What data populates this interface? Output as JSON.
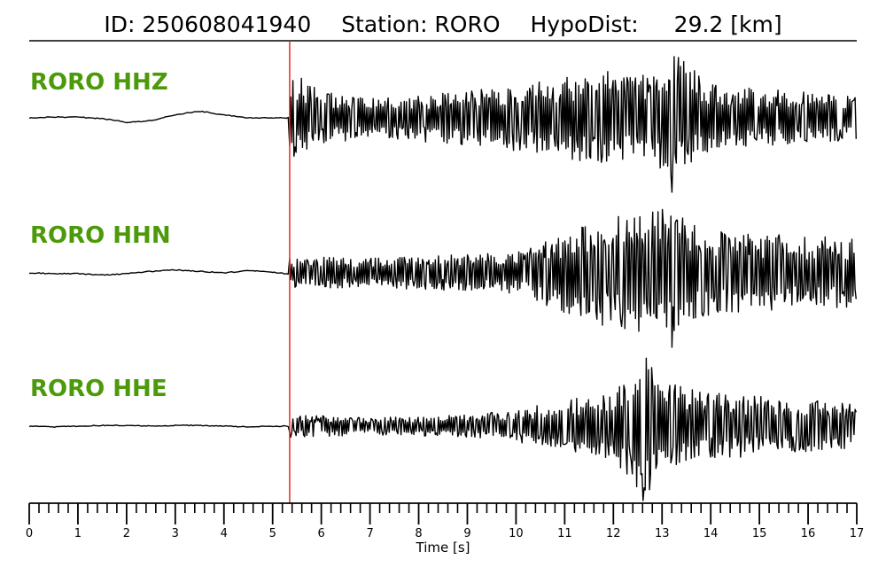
{
  "header": {
    "id_text": "ID: 250608041940",
    "station_text": "Station: RORO",
    "hypodist_text": "HypoDist:",
    "hypodist_value": "29.2 [km]"
  },
  "colors": {
    "trace": "#000000",
    "label": "#4c9a0a",
    "pick_line": "#e8291f",
    "axis": "#000000"
  },
  "chart_data": {
    "type": "line",
    "title": "ID: 250608041940   Station: RORO   HypoDist:    29.2 [km]",
    "xlabel": "Time [s]",
    "ylabel": "",
    "xlim": [
      0,
      17
    ],
    "x_ticks": [
      0,
      1,
      2,
      3,
      4,
      5,
      6,
      7,
      8,
      9,
      10,
      11,
      12,
      13,
      14,
      15,
      16,
      17
    ],
    "minor_tick_step": 0.2,
    "pick_time": 5.35,
    "grid": false,
    "series": [
      {
        "name": "RORO HHZ",
        "pre_event": [
          [
            0,
            0
          ],
          [
            0.5,
            0.01
          ],
          [
            1,
            0.01
          ],
          [
            1.5,
            -0.01
          ],
          [
            2,
            -0.06
          ],
          [
            2.5,
            -0.04
          ],
          [
            3,
            0.04
          ],
          [
            3.5,
            0.09
          ],
          [
            4,
            0.04
          ],
          [
            4.5,
            0.0
          ],
          [
            5,
            0.0
          ],
          [
            5.35,
            0.0
          ]
        ],
        "envelope": [
          [
            5.35,
            0.5
          ],
          [
            5.6,
            0.55
          ],
          [
            6,
            0.35
          ],
          [
            7,
            0.28
          ],
          [
            8,
            0.32
          ],
          [
            9,
            0.38
          ],
          [
            10,
            0.45
          ],
          [
            11,
            0.55
          ],
          [
            12,
            0.65
          ],
          [
            12.5,
            0.6
          ],
          [
            13,
            0.7
          ],
          [
            13.2,
            0.9
          ],
          [
            14,
            0.45
          ],
          [
            15,
            0.4
          ],
          [
            16,
            0.35
          ],
          [
            17,
            0.3
          ]
        ],
        "peak_time": 13.2,
        "peak_amplitude": -1.0
      },
      {
        "name": "RORO HHN",
        "pre_event": [
          [
            0,
            0
          ],
          [
            0.5,
            -0.01
          ],
          [
            1,
            -0.01
          ],
          [
            1.5,
            -0.03
          ],
          [
            2,
            -0.01
          ],
          [
            2.5,
            0.02
          ],
          [
            3,
            0.04
          ],
          [
            3.5,
            0.02
          ],
          [
            4,
            0.0
          ],
          [
            4.5,
            0.03
          ],
          [
            5,
            0.01
          ],
          [
            5.35,
            -0.02
          ]
        ],
        "envelope": [
          [
            5.35,
            0.2
          ],
          [
            6,
            0.22
          ],
          [
            7,
            0.2
          ],
          [
            8,
            0.22
          ],
          [
            9,
            0.25
          ],
          [
            10,
            0.28
          ],
          [
            10.5,
            0.4
          ],
          [
            11,
            0.55
          ],
          [
            12,
            0.75
          ],
          [
            12.5,
            0.8
          ],
          [
            13,
            0.85
          ],
          [
            13.2,
            0.9
          ],
          [
            14,
            0.55
          ],
          [
            15,
            0.55
          ],
          [
            16,
            0.5
          ],
          [
            17,
            0.45
          ]
        ],
        "peak_time": 13.2,
        "peak_amplitude": -1.0
      },
      {
        "name": "RORO HHE",
        "pre_event": [
          [
            0,
            0
          ],
          [
            0.5,
            -0.01
          ],
          [
            1,
            0.0
          ],
          [
            1.5,
            0.01
          ],
          [
            2,
            0.01
          ],
          [
            2.5,
            0.0
          ],
          [
            3,
            0.01
          ],
          [
            3.5,
            0.01
          ],
          [
            4,
            0.0
          ],
          [
            4.5,
            -0.01
          ],
          [
            5,
            0.0
          ],
          [
            5.35,
            0.0
          ]
        ],
        "envelope": [
          [
            5.35,
            0.15
          ],
          [
            6,
            0.14
          ],
          [
            7,
            0.12
          ],
          [
            8,
            0.13
          ],
          [
            9,
            0.15
          ],
          [
            10,
            0.22
          ],
          [
            11,
            0.35
          ],
          [
            12,
            0.45
          ],
          [
            12.3,
            0.7
          ],
          [
            12.6,
            1.0
          ],
          [
            13,
            0.6
          ],
          [
            14,
            0.45
          ],
          [
            15,
            0.4
          ],
          [
            16,
            0.35
          ],
          [
            17,
            0.3
          ]
        ],
        "peak_time": 12.6,
        "peak_amplitude": -1.0
      }
    ]
  }
}
